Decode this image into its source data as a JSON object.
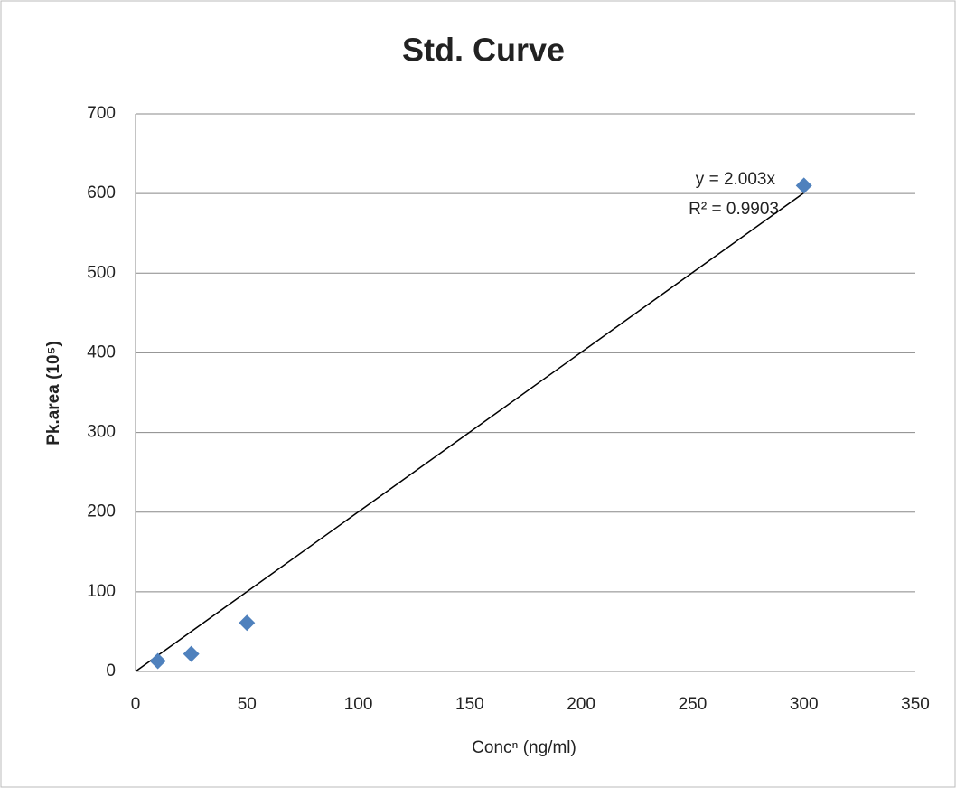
{
  "chart_data": {
    "type": "scatter",
    "title": "Std. Curve",
    "xlabel": "Concⁿ (ng/ml)",
    "ylabel": "Pk.area (10⁵)",
    "x": [
      10,
      25,
      50,
      300
    ],
    "values": [
      13,
      22,
      61,
      610
    ],
    "color": "#4f81bd",
    "trendline": {
      "x": [
        0,
        300
      ],
      "values": [
        0,
        600.9
      ],
      "color": "#000000"
    },
    "annotations": [
      "y = 2.003x",
      "R² = 0.9903"
    ],
    "xlim": [
      0,
      350
    ],
    "xticks": [
      0,
      50,
      100,
      150,
      200,
      250,
      300,
      350
    ],
    "ylim": [
      0,
      700
    ],
    "yticks": [
      0,
      100,
      200,
      300,
      400,
      500,
      600,
      700
    ],
    "grid": true
  }
}
